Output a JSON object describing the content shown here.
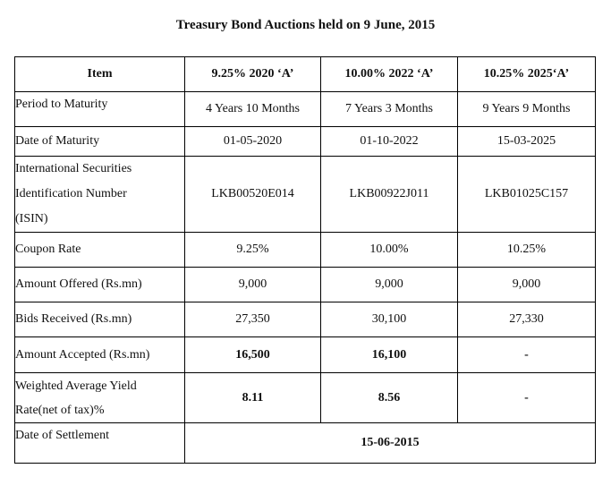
{
  "title": "Treasury Bond Auctions held on 9 June, 2015",
  "columns": [
    "Item",
    "9.25% 2020 ‘A’",
    "10.00% 2022 ‘A’",
    "10.25% 2025‘A’"
  ],
  "rows": {
    "period": {
      "label": "Period to Maturity",
      "values": [
        "4 Years 10 Months",
        "7 Years 3 Months",
        "9 Years 9 Months"
      ]
    },
    "maturity_date": {
      "label": "Date of Maturity",
      "values": [
        "01-05-2020",
        "01-10-2022",
        "15-03-2025"
      ]
    },
    "isin": {
      "label_lines": [
        "International Securities",
        "Identification Number",
        "(ISIN)"
      ],
      "values": [
        "LKB00520E014",
        "LKB00922J011",
        "LKB01025C157"
      ]
    },
    "coupon": {
      "label": "Coupon Rate",
      "values": [
        "9.25%",
        "10.00%",
        "10.25%"
      ]
    },
    "offered": {
      "label": "Amount Offered (Rs.mn)",
      "values": [
        "9,000",
        "9,000",
        "9,000"
      ]
    },
    "bids": {
      "label": "Bids Received (Rs.mn)",
      "values": [
        "27,350",
        "30,100",
        "27,330"
      ]
    },
    "accepted": {
      "label": "Amount Accepted (Rs.mn)",
      "values": [
        "16,500",
        "16,100",
        "-"
      ]
    },
    "yield": {
      "label_lines": [
        "Weighted Average Yield",
        "Rate(net of tax)%"
      ],
      "values": [
        "8.11",
        "8.56",
        "-"
      ]
    },
    "settlement": {
      "label": "Date of Settlement",
      "value": "15-06-2015"
    }
  }
}
